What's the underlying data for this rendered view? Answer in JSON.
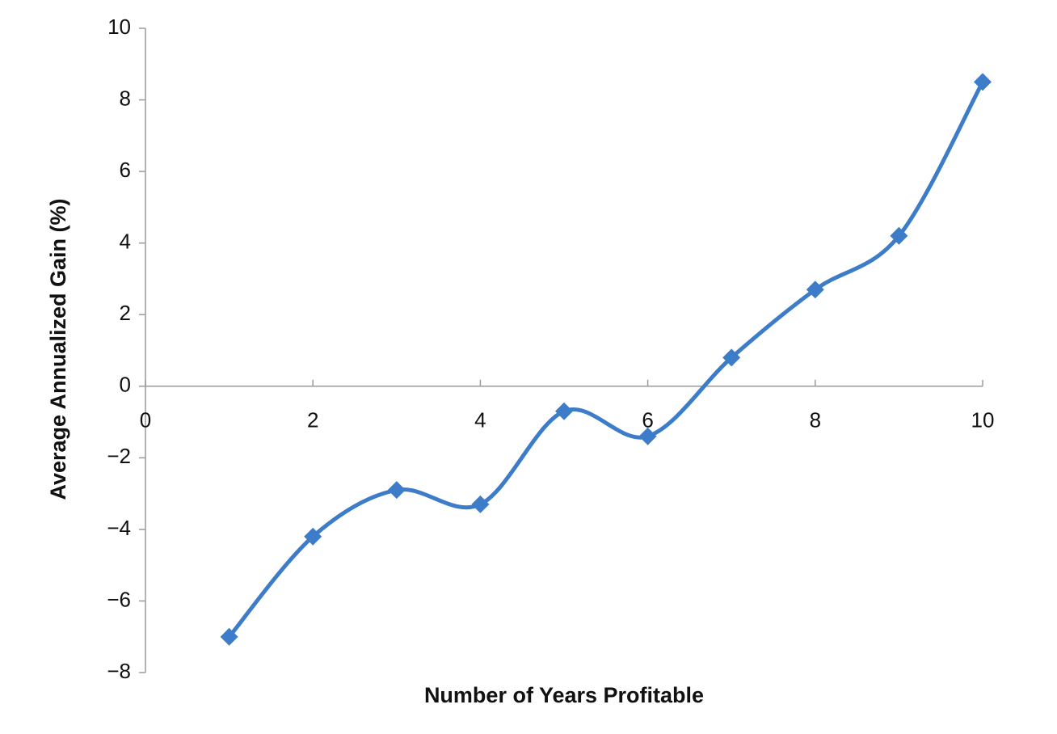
{
  "chart_data": {
    "type": "line",
    "x_label": "Number of Years Profitable",
    "y_label": "Average Annualized Gain (%)",
    "x": [
      1,
      2,
      3,
      4,
      5,
      6,
      7,
      8,
      9,
      10
    ],
    "values": [
      -7.0,
      -4.2,
      -2.9,
      -3.3,
      -0.7,
      -1.4,
      0.8,
      2.7,
      4.2,
      8.5
    ],
    "color": "#3d7cc9",
    "smooth": true,
    "marker": "diamond",
    "xlim": [
      0,
      10
    ],
    "xticks": [
      0,
      2,
      4,
      6,
      8,
      10
    ],
    "ylim": [
      -8,
      10
    ],
    "yticks": [
      {
        "value": -8,
        "label": "−8"
      },
      {
        "value": -6,
        "label": "−6"
      },
      {
        "value": -4,
        "label": "−4"
      },
      {
        "value": -2,
        "label": "−2"
      },
      0,
      2,
      4,
      6,
      8,
      10
    ]
  }
}
